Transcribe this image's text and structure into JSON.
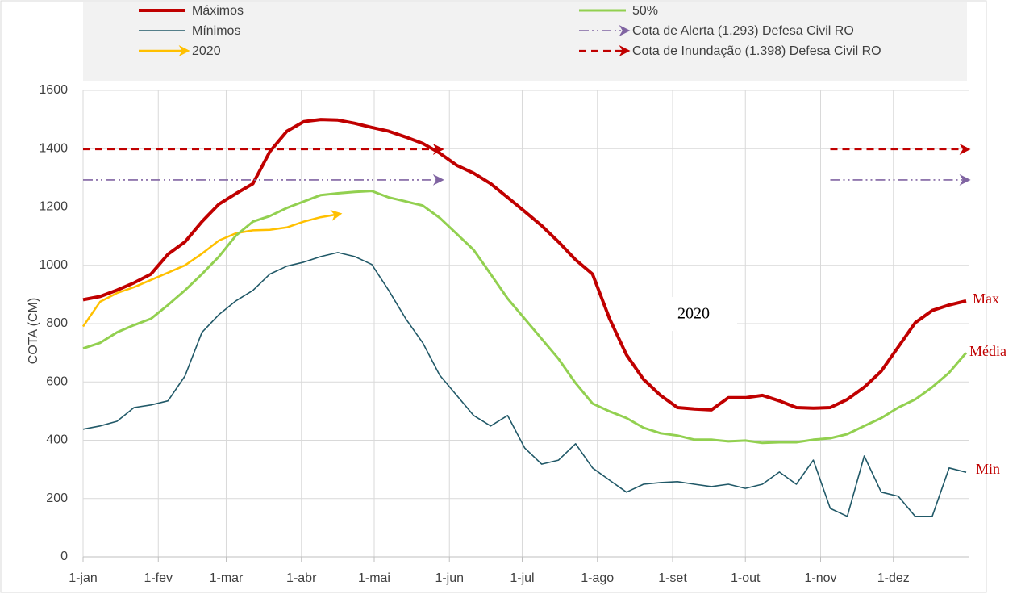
{
  "chart_data": {
    "type": "line",
    "y_label": "COTA (CM)",
    "xlim": [
      0,
      365
    ],
    "xticks": [
      {
        "value": 0,
        "label": "1-jan"
      },
      {
        "value": 31,
        "label": "1-fev"
      },
      {
        "value": 59,
        "label": "1-mar"
      },
      {
        "value": 90,
        "label": "1-abr"
      },
      {
        "value": 120,
        "label": "1-mai"
      },
      {
        "value": 151,
        "label": "1-jun"
      },
      {
        "value": 181,
        "label": "1-jul"
      },
      {
        "value": 212,
        "label": "1-ago"
      },
      {
        "value": 243,
        "label": "1-set"
      },
      {
        "value": 273,
        "label": "1-out"
      },
      {
        "value": 304,
        "label": "1-nov"
      },
      {
        "value": 334,
        "label": "1-dez"
      }
    ],
    "ylim": [
      0,
      1600
    ],
    "yticks": [
      0,
      200,
      400,
      600,
      800,
      1000,
      1200,
      1400,
      1600
    ],
    "grid": true,
    "legend": "top",
    "x": [
      0,
      7,
      14,
      21,
      28,
      35,
      42,
      49,
      56,
      63,
      70,
      77,
      84,
      91,
      98,
      105,
      112,
      119,
      126,
      133,
      140,
      147,
      154,
      161,
      168,
      175,
      182,
      189,
      196,
      203,
      210,
      217,
      224,
      231,
      238,
      245,
      252,
      259,
      266,
      273,
      280,
      287,
      294,
      301,
      308,
      315,
      322,
      329,
      336,
      343,
      350,
      357,
      364
    ],
    "series": [
      {
        "name": "Máximos",
        "color": "#c00000",
        "width": 4,
        "dash": "solid",
        "arrow": false,
        "values": [
          882,
          893,
          915,
          940,
          970,
          1038,
          1080,
          1150,
          1210,
          1246,
          1280,
          1390,
          1460,
          1493,
          1500,
          1498,
          1487,
          1473,
          1460,
          1440,
          1418,
          1385,
          1343,
          1316,
          1280,
          1233,
          1185,
          1136,
          1080,
          1019,
          970,
          817,
          693,
          609,
          554,
          512,
          507,
          504,
          546,
          546,
          554,
          535,
          512,
          510,
          512,
          540,
          582,
          637,
          720,
          803,
          845,
          864,
          878
        ]
      },
      {
        "name": "Mínimos",
        "color": "#215968",
        "width": 1.6,
        "dash": "solid",
        "arrow": false,
        "values": [
          438,
          449,
          465,
          512,
          521,
          535,
          620,
          770,
          831,
          878,
          914,
          970,
          997,
          1011,
          1030,
          1044,
          1030,
          1003,
          914,
          817,
          734,
          623,
          554,
          485,
          449,
          485,
          374,
          318,
          332,
          388,
          305,
          263,
          222,
          249,
          255,
          258,
          249,
          241,
          249,
          235,
          249,
          291,
          249,
          332,
          166,
          139,
          346,
          222,
          208,
          139,
          139,
          305,
          290
        ]
      },
      {
        "name": "2020",
        "color": "#ffc000",
        "width": 2.5,
        "dash": "solid",
        "arrow": true,
        "values": [
          790,
          875,
          905,
          925,
          950,
          975,
          1000,
          1040,
          1085,
          1110,
          1120,
          1122,
          1130,
          1150,
          1165,
          1175,
          null,
          null,
          null,
          null,
          null,
          null,
          null,
          null,
          null,
          null,
          null,
          null,
          null,
          null,
          null,
          null,
          null,
          null,
          null,
          null,
          null,
          null,
          null,
          null,
          null,
          null,
          null,
          null,
          null,
          null,
          null,
          null,
          null,
          null,
          null,
          null,
          null
        ]
      },
      {
        "name": "50%",
        "color": "#92d050",
        "width": 3,
        "dash": "solid",
        "arrow": false,
        "values": [
          715,
          734,
          770,
          795,
          817,
          864,
          914,
          970,
          1030,
          1102,
          1150,
          1169,
          1197,
          1219,
          1241,
          1247,
          1252,
          1255,
          1233,
          1219,
          1205,
          1163,
          1108,
          1053,
          970,
          886,
          817,
          748,
          679,
          596,
          526,
          499,
          476,
          443,
          424,
          416,
          402,
          402,
          396,
          399,
          391,
          393,
          393,
          402,
          407,
          421,
          449,
          476,
          512,
          540,
          582,
          632,
          700
        ]
      },
      {
        "name": "Cota de Alerta  (1.293) Defesa Civil RO",
        "color": "#8064a2",
        "width": 1.6,
        "dash": "dashdot",
        "arrow": true,
        "values": [
          1293,
          1293,
          1293,
          1293,
          1293,
          1293,
          1293,
          1293,
          1293,
          1293,
          1293,
          1293,
          1293,
          1293,
          1293,
          1293,
          1293,
          1293,
          1293,
          1293,
          1293,
          1293,
          null,
          null,
          null,
          null,
          null,
          null,
          null,
          null,
          null,
          null,
          null,
          null,
          null,
          null,
          null,
          null,
          null,
          null,
          null,
          null,
          null,
          null,
          1293,
          1293,
          1293,
          1293,
          1293,
          1293,
          1293,
          1293,
          1293
        ]
      },
      {
        "name": "Cota de Inundação (1.398) Defesa Civil RO",
        "color": "#c00000",
        "width": 2.2,
        "dash": "dash",
        "arrow": true,
        "values": [
          1398,
          1398,
          1398,
          1398,
          1398,
          1398,
          1398,
          1398,
          1398,
          1398,
          1398,
          1398,
          1398,
          1398,
          1398,
          1398,
          1398,
          1398,
          1398,
          1398,
          1398,
          1398,
          null,
          null,
          null,
          null,
          null,
          null,
          null,
          null,
          null,
          null,
          null,
          null,
          null,
          null,
          null,
          null,
          null,
          null,
          null,
          null,
          null,
          null,
          1398,
          1398,
          1398,
          1398,
          1398,
          1398,
          1398,
          1398,
          1398
        ]
      }
    ],
    "annotations": [
      {
        "text": "2020"
      },
      {
        "text": "Max"
      },
      {
        "text": "Média"
      },
      {
        "text": "Min"
      }
    ]
  }
}
